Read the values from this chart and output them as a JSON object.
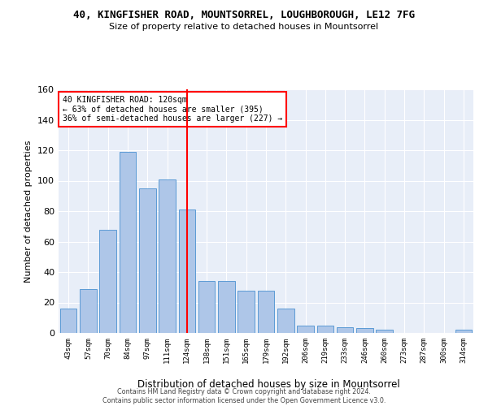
{
  "title": "40, KINGFISHER ROAD, MOUNTSORREL, LOUGHBOROUGH, LE12 7FG",
  "subtitle": "Size of property relative to detached houses in Mountsorrel",
  "xlabel": "Distribution of detached houses by size in Mountsorrel",
  "ylabel": "Number of detached properties",
  "bar_labels": [
    "43sqm",
    "57sqm",
    "70sqm",
    "84sqm",
    "97sqm",
    "111sqm",
    "124sqm",
    "138sqm",
    "151sqm",
    "165sqm",
    "179sqm",
    "192sqm",
    "206sqm",
    "219sqm",
    "233sqm",
    "246sqm",
    "260sqm",
    "273sqm",
    "287sqm",
    "300sqm",
    "314sqm"
  ],
  "bar_values": [
    16,
    29,
    68,
    119,
    95,
    101,
    81,
    34,
    34,
    28,
    28,
    16,
    5,
    5,
    4,
    3,
    2,
    0,
    0,
    0,
    2
  ],
  "bar_color": "#aec6e8",
  "bar_edgecolor": "#5b9bd5",
  "vline_x": 6,
  "vline_color": "red",
  "ylim": [
    0,
    160
  ],
  "yticks": [
    0,
    20,
    40,
    60,
    80,
    100,
    120,
    140,
    160
  ],
  "annotation_line1": "40 KINGFISHER ROAD: 120sqm",
  "annotation_line2": "← 63% of detached houses are smaller (395)",
  "annotation_line3": "36% of semi-detached houses are larger (227) →",
  "annotation_box_color": "red",
  "footer_line1": "Contains HM Land Registry data © Crown copyright and database right 2024.",
  "footer_line2": "Contains public sector information licensed under the Open Government Licence v3.0.",
  "plot_bg_color": "#e8eef8",
  "fig_bg_color": "#ffffff"
}
